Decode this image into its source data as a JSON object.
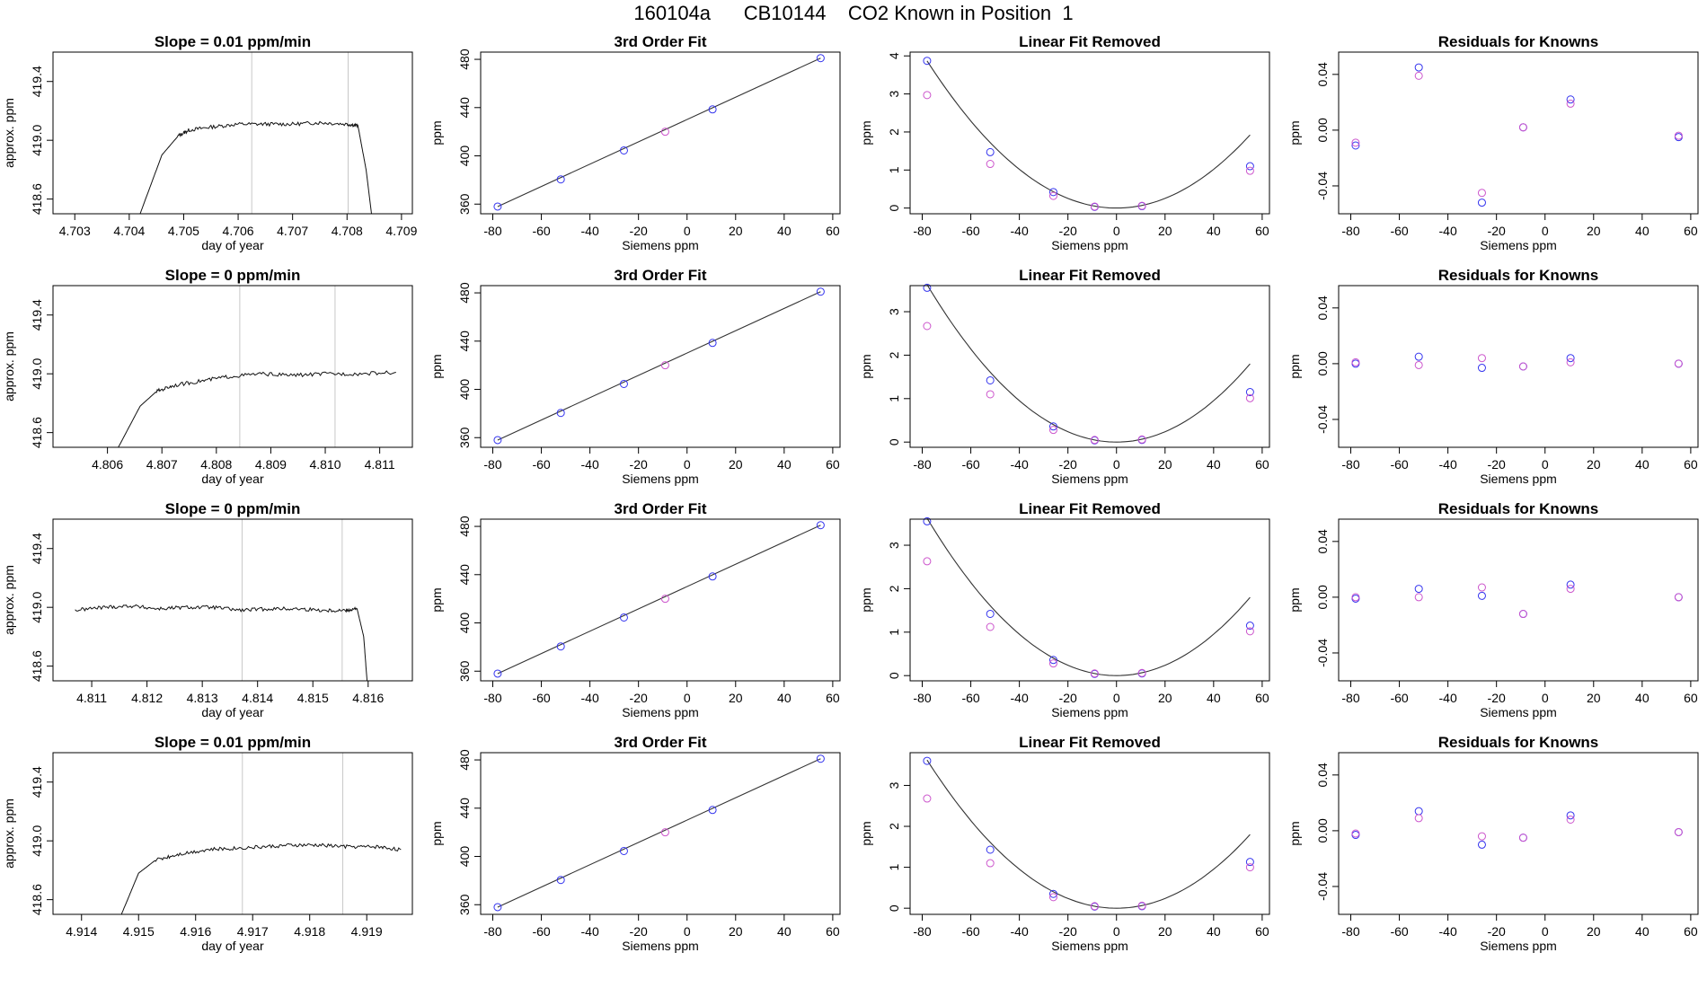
{
  "page": {
    "title": "160104a      CB10144    CO2 Known in Position  1"
  },
  "chart_data": [
    {
      "type": "line",
      "title": "Slope =  0.01  ppm/min",
      "xlabel": "day of year",
      "ylabel": "approx. ppm",
      "xlim": [
        4.7026,
        4.7092
      ],
      "ylim": [
        418.5,
        419.6
      ],
      "xticks": [
        4.703,
        4.704,
        4.705,
        4.706,
        4.707,
        4.708,
        4.709
      ],
      "yticks": [
        418.6,
        419.0,
        419.4
      ],
      "vlines": [
        4.70625,
        4.70802
      ],
      "x": [
        4.7042,
        4.7046,
        4.7049,
        4.7051,
        4.7055,
        4.706,
        4.7065,
        4.707,
        4.7075,
        4.708,
        4.7082,
        4.70835,
        4.70845
      ],
      "y": [
        418.5,
        418.9,
        419.03,
        419.07,
        419.09,
        419.11,
        419.11,
        419.11,
        419.12,
        419.11,
        419.1,
        418.8,
        418.5
      ]
    },
    {
      "type": "scatter",
      "title": "3rd Order Fit",
      "xlabel": "Siemens ppm",
      "ylabel": "ppm",
      "xlim": [
        -85,
        63
      ],
      "ylim": [
        352,
        486
      ],
      "xticks": [
        -80,
        -60,
        -40,
        -20,
        0,
        20,
        40,
        60
      ],
      "yticks": [
        360,
        400,
        440,
        480
      ],
      "fit": {
        "x": [
          -78,
          55
        ],
        "y": [
          358,
          481
        ]
      },
      "series": [
        {
          "color": "#3333ee",
          "x": [
            -78,
            -52,
            -26,
            10.5,
            55
          ],
          "y": [
            358,
            380.5,
            404.5,
            438.5,
            481
          ]
        },
        {
          "color": "#cc55cc",
          "x": [
            -9
          ],
          "y": [
            420
          ]
        }
      ]
    },
    {
      "type": "scatter",
      "title": "Linear Fit Removed",
      "xlabel": "Siemens ppm",
      "ylabel": "ppm",
      "xlim": [
        -85,
        63
      ],
      "ylim": [
        -0.15,
        4.1
      ],
      "xticks": [
        -80,
        -60,
        -40,
        -20,
        0,
        20,
        40,
        60
      ],
      "yticks": [
        0,
        1,
        2,
        3,
        4
      ],
      "fit": {
        "a": 0.000636,
        "b": 0
      },
      "series": [
        {
          "color": "#3333ee",
          "x": [
            -78,
            -52,
            -26,
            -9,
            10.5,
            55
          ],
          "y": [
            3.87,
            1.47,
            0.42,
            0.03,
            0.05,
            1.1
          ]
        },
        {
          "color": "#cc55cc",
          "x": [
            -78,
            -52,
            -26,
            -9,
            10.5,
            55
          ],
          "y": [
            2.97,
            1.16,
            0.32,
            0.04,
            0.06,
            0.98
          ]
        }
      ]
    },
    {
      "type": "scatter",
      "title": "Residuals for Knowns",
      "xlabel": "Siemens ppm",
      "ylabel": "ppm",
      "xlim": [
        -85,
        63
      ],
      "ylim": [
        -0.06,
        0.056
      ],
      "xticks": [
        -80,
        -60,
        -40,
        -20,
        0,
        20,
        40,
        60
      ],
      "yticks": [
        -0.04,
        0.0,
        0.04
      ],
      "series": [
        {
          "color": "#3333ee",
          "x": [
            -78,
            -52,
            -26,
            -9,
            10.5,
            55
          ],
          "y": [
            -0.011,
            0.045,
            -0.052,
            0.002,
            0.022,
            -0.005
          ]
        },
        {
          "color": "#cc55cc",
          "x": [
            -78,
            -52,
            -26,
            -9,
            10.5,
            55
          ],
          "y": [
            -0.009,
            0.039,
            -0.045,
            0.002,
            0.019,
            -0.004
          ]
        }
      ]
    },
    {
      "type": "line",
      "title": "Slope =  0  ppm/min",
      "xlabel": "day of year",
      "ylabel": "approx. ppm",
      "xlim": [
        4.805,
        4.8116
      ],
      "ylim": [
        418.5,
        419.6
      ],
      "xticks": [
        4.806,
        4.807,
        4.808,
        4.809,
        4.81,
        4.811
      ],
      "yticks": [
        418.6,
        419.0,
        419.4
      ],
      "vlines": [
        4.80843,
        4.81018
      ],
      "x": [
        4.8062,
        4.8066,
        4.8069,
        4.8072,
        4.8077,
        4.8082,
        4.8088,
        4.8094,
        4.81,
        4.8106,
        4.8113
      ],
      "y": [
        418.5,
        418.78,
        418.88,
        418.92,
        418.95,
        418.98,
        419.0,
        418.99,
        419.0,
        419.0,
        419.01
      ]
    },
    {
      "type": "scatter",
      "title": "3rd Order Fit",
      "xlabel": "Siemens ppm",
      "ylabel": "ppm",
      "xlim": [
        -85,
        63
      ],
      "ylim": [
        352,
        486
      ],
      "xticks": [
        -80,
        -60,
        -40,
        -20,
        0,
        20,
        40,
        60
      ],
      "yticks": [
        360,
        400,
        440,
        480
      ],
      "fit": {
        "x": [
          -78,
          55
        ],
        "y": [
          358,
          481
        ]
      },
      "series": [
        {
          "color": "#3333ee",
          "x": [
            -78,
            -52,
            -26,
            10.5,
            55
          ],
          "y": [
            358,
            380.5,
            404.5,
            438.5,
            481
          ]
        },
        {
          "color": "#cc55cc",
          "x": [
            -9
          ],
          "y": [
            420
          ]
        }
      ]
    },
    {
      "type": "scatter",
      "title": "Linear Fit Removed",
      "xlabel": "Siemens ppm",
      "ylabel": "ppm",
      "xlim": [
        -85,
        63
      ],
      "ylim": [
        -0.12,
        3.6
      ],
      "xticks": [
        -80,
        -60,
        -40,
        -20,
        0,
        20,
        40,
        60
      ],
      "yticks": [
        0.0,
        1.0,
        2.0,
        3.0
      ],
      "fit": {
        "a": 0.000595,
        "b": 0
      },
      "series": [
        {
          "color": "#3333ee",
          "x": [
            -78,
            -52,
            -26,
            -9,
            10.5,
            55
          ],
          "y": [
            3.55,
            1.42,
            0.36,
            0.04,
            0.05,
            1.15
          ]
        },
        {
          "color": "#cc55cc",
          "x": [
            -78,
            -52,
            -26,
            -9,
            10.5,
            55
          ],
          "y": [
            2.67,
            1.1,
            0.28,
            0.05,
            0.06,
            1.01
          ]
        }
      ]
    },
    {
      "type": "scatter",
      "title": "Residuals for Knowns",
      "xlabel": "Siemens ppm",
      "ylabel": "ppm",
      "xlim": [
        -85,
        63
      ],
      "ylim": [
        -0.06,
        0.056
      ],
      "xticks": [
        -80,
        -60,
        -40,
        -20,
        0,
        20,
        40,
        60
      ],
      "yticks": [
        -0.04,
        0.0,
        0.04
      ],
      "series": [
        {
          "color": "#3333ee",
          "x": [
            -78,
            -52,
            -26,
            -9,
            10.5,
            55
          ],
          "y": [
            0.0,
            0.005,
            -0.003,
            -0.002,
            0.004,
            0.0
          ]
        },
        {
          "color": "#cc55cc",
          "x": [
            -78,
            -52,
            -26,
            -9,
            10.5,
            55
          ],
          "y": [
            0.001,
            -0.001,
            0.004,
            -0.002,
            0.001,
            0.0
          ]
        }
      ]
    },
    {
      "type": "line",
      "title": "Slope =  0  ppm/min",
      "xlabel": "day of year",
      "ylabel": "approx. ppm",
      "xlim": [
        4.8103,
        4.8168
      ],
      "ylim": [
        418.5,
        419.6
      ],
      "xticks": [
        4.811,
        4.812,
        4.813,
        4.814,
        4.815,
        4.816
      ],
      "yticks": [
        418.6,
        419.0,
        419.4
      ],
      "vlines": [
        4.81372,
        4.81553
      ],
      "x": [
        4.8107,
        4.8112,
        4.8117,
        4.8122,
        4.8127,
        4.8132,
        4.8137,
        4.8142,
        4.8147,
        4.8152,
        4.8156,
        4.8158,
        4.81592,
        4.81598
      ],
      "y": [
        418.98,
        419.0,
        419.01,
        418.99,
        419.0,
        419.0,
        418.98,
        418.99,
        418.99,
        418.98,
        418.98,
        418.99,
        418.8,
        418.5
      ]
    },
    {
      "type": "scatter",
      "title": "3rd Order Fit",
      "xlabel": "Siemens ppm",
      "ylabel": "ppm",
      "xlim": [
        -85,
        63
      ],
      "ylim": [
        352,
        486
      ],
      "xticks": [
        -80,
        -60,
        -40,
        -20,
        0,
        20,
        40,
        60
      ],
      "yticks": [
        360,
        400,
        440,
        480
      ],
      "fit": {
        "x": [
          -78,
          55
        ],
        "y": [
          358,
          481
        ]
      },
      "series": [
        {
          "color": "#3333ee",
          "x": [
            -78,
            -52,
            -26,
            10.5,
            55
          ],
          "y": [
            358,
            380.5,
            404.5,
            438.5,
            481
          ]
        },
        {
          "color": "#cc55cc",
          "x": [
            -9
          ],
          "y": [
            420
          ]
        }
      ]
    },
    {
      "type": "scatter",
      "title": "Linear Fit Removed",
      "xlabel": "Siemens ppm",
      "ylabel": "ppm",
      "xlim": [
        -85,
        63
      ],
      "ylim": [
        -0.12,
        3.6
      ],
      "xticks": [
        -80,
        -60,
        -40,
        -20,
        0,
        20,
        40,
        60
      ],
      "yticks": [
        0.0,
        1.0,
        2.0,
        3.0
      ],
      "fit": {
        "a": 0.000595,
        "b": 0
      },
      "series": [
        {
          "color": "#3333ee",
          "x": [
            -78,
            -52,
            -26,
            -9,
            10.5,
            55
          ],
          "y": [
            3.55,
            1.42,
            0.36,
            0.04,
            0.05,
            1.15
          ]
        },
        {
          "color": "#cc55cc",
          "x": [
            -78,
            -52,
            -26,
            -9,
            10.5,
            55
          ],
          "y": [
            2.63,
            1.12,
            0.28,
            0.05,
            0.06,
            1.02
          ]
        }
      ]
    },
    {
      "type": "scatter",
      "title": "Residuals for Knowns",
      "xlabel": "Siemens ppm",
      "ylabel": "ppm",
      "xlim": [
        -85,
        63
      ],
      "ylim": [
        -0.06,
        0.056
      ],
      "xticks": [
        -80,
        -60,
        -40,
        -20,
        0,
        20,
        40,
        60
      ],
      "yticks": [
        -0.04,
        0.0,
        0.04
      ],
      "series": [
        {
          "color": "#3333ee",
          "x": [
            -78,
            -52,
            -26,
            -9,
            10.5,
            55
          ],
          "y": [
            -0.001,
            0.006,
            0.001,
            -0.012,
            0.009,
            0.0
          ]
        },
        {
          "color": "#cc55cc",
          "x": [
            -78,
            -52,
            -26,
            -9,
            10.5,
            55
          ],
          "y": [
            0.0,
            0.0,
            0.007,
            -0.012,
            0.006,
            0.0
          ]
        }
      ]
    },
    {
      "type": "line",
      "title": "Slope =  0.01  ppm/min",
      "xlabel": "day of year",
      "ylabel": "approx. ppm",
      "xlim": [
        4.9135,
        4.9198
      ],
      "ylim": [
        418.5,
        419.6
      ],
      "xticks": [
        4.914,
        4.915,
        4.916,
        4.917,
        4.918,
        4.919
      ],
      "yticks": [
        418.6,
        419.0,
        419.4
      ],
      "vlines": [
        4.91682,
        4.91858
      ],
      "x": [
        4.9147,
        4.915,
        4.9153,
        4.9157,
        4.9162,
        4.9167,
        4.9172,
        4.9177,
        4.9182,
        4.9187,
        4.9192,
        4.9196
      ],
      "y": [
        418.5,
        418.78,
        418.87,
        418.91,
        418.94,
        418.95,
        418.96,
        418.97,
        418.97,
        418.96,
        418.96,
        418.94
      ]
    },
    {
      "type": "scatter",
      "title": "3rd Order Fit",
      "xlabel": "Siemens ppm",
      "ylabel": "ppm",
      "xlim": [
        -85,
        63
      ],
      "ylim": [
        352,
        486
      ],
      "xticks": [
        -80,
        -60,
        -40,
        -20,
        0,
        20,
        40,
        60
      ],
      "yticks": [
        360,
        400,
        440,
        480
      ],
      "fit": {
        "x": [
          -78,
          55
        ],
        "y": [
          358,
          481
        ]
      },
      "series": [
        {
          "color": "#3333ee",
          "x": [
            -78,
            -52,
            -26,
            10.5,
            55
          ],
          "y": [
            358,
            380.5,
            404.5,
            438.5,
            481
          ]
        },
        {
          "color": "#cc55cc",
          "x": [
            -9
          ],
          "y": [
            420
          ]
        }
      ]
    },
    {
      "type": "scatter",
      "title": "Linear Fit Removed",
      "xlabel": "Siemens ppm",
      "ylabel": "ppm",
      "xlim": [
        -85,
        63
      ],
      "ylim": [
        -0.15,
        3.8
      ],
      "xticks": [
        -80,
        -60,
        -40,
        -20,
        0,
        20,
        40,
        60
      ],
      "yticks": [
        0,
        1,
        2,
        3
      ],
      "fit": {
        "a": 0.000595,
        "b": 0
      },
      "series": [
        {
          "color": "#3333ee",
          "x": [
            -78,
            -52,
            -26,
            -9,
            10.5,
            55
          ],
          "y": [
            3.6,
            1.43,
            0.35,
            0.04,
            0.05,
            1.13
          ]
        },
        {
          "color": "#cc55cc",
          "x": [
            -78,
            -52,
            -26,
            -9,
            10.5,
            55
          ],
          "y": [
            2.68,
            1.1,
            0.27,
            0.05,
            0.06,
            1.0
          ]
        }
      ]
    },
    {
      "type": "scatter",
      "title": "Residuals for Knowns",
      "xlabel": "Siemens ppm",
      "ylabel": "ppm",
      "xlim": [
        -85,
        63
      ],
      "ylim": [
        -0.06,
        0.056
      ],
      "xticks": [
        -80,
        -60,
        -40,
        -20,
        0,
        20,
        40,
        60
      ],
      "yticks": [
        -0.04,
        0.0,
        0.04
      ],
      "series": [
        {
          "color": "#3333ee",
          "x": [
            -78,
            -52,
            -26,
            -9,
            10.5,
            55
          ],
          "y": [
            -0.003,
            0.014,
            -0.01,
            -0.005,
            0.011,
            -0.001
          ]
        },
        {
          "color": "#cc55cc",
          "x": [
            -78,
            -52,
            -26,
            -9,
            10.5,
            55
          ],
          "y": [
            -0.002,
            0.009,
            -0.004,
            -0.005,
            0.008,
            -0.001
          ]
        }
      ]
    }
  ]
}
